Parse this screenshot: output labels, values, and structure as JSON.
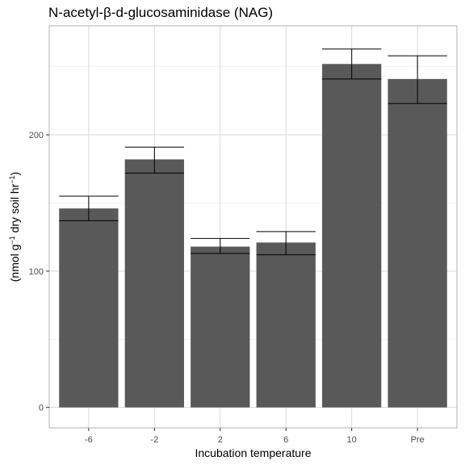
{
  "chart_data": {
    "type": "bar",
    "title": "N-acetyl-β-d-glucosaminidase (NAG)",
    "xlabel": "Incubation temperature",
    "ylabel": {
      "open": "(nmol g",
      "sup1": "−1",
      "middle": " dry soil hr",
      "sup2": "−1",
      "close": ")"
    },
    "categories": [
      "-6",
      "-2",
      "2",
      "6",
      "10",
      "Pre"
    ],
    "values": [
      146,
      182,
      118,
      121,
      252,
      241
    ],
    "error_low": [
      137,
      172,
      113,
      112,
      241,
      223
    ],
    "error_high": [
      155,
      191,
      124,
      129,
      263,
      258
    ],
    "ylim": [
      -15,
      280
    ],
    "yticks": [
      0,
      100,
      200
    ],
    "ytick_labels": [
      "0",
      "100",
      "200"
    ],
    "grid": true,
    "bar_color": "#595959",
    "error_color": "#000000",
    "panel_border_color": "#b3b3b3",
    "grid_major_color": "#d9d9d9",
    "grid_minor_color": "#ebebeb"
  }
}
